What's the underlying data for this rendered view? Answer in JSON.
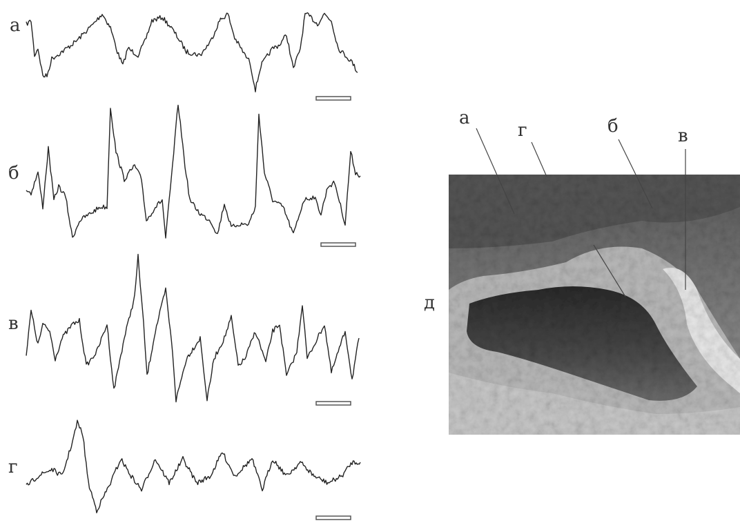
{
  "traces": {
    "labels": [
      "а",
      "б",
      "в",
      "г"
    ]
  },
  "photo": {
    "labels": [
      "а",
      "г",
      "б",
      "в",
      "д"
    ]
  }
}
